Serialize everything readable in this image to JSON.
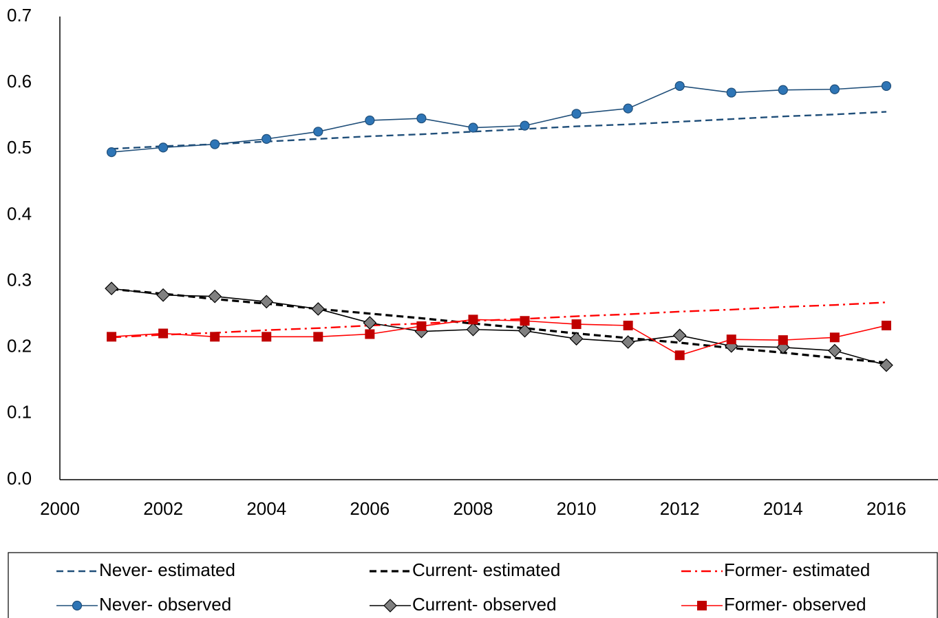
{
  "chart_data": {
    "type": "line",
    "x": [
      2001,
      2002,
      2003,
      2004,
      2005,
      2006,
      2007,
      2008,
      2009,
      2010,
      2011,
      2012,
      2013,
      2014,
      2015,
      2016
    ],
    "series": [
      {
        "name": "Never- estimated",
        "color": "#1f4e79",
        "dash": "dashed",
        "values": [
          0.5,
          0.504,
          0.507,
          0.511,
          0.515,
          0.519,
          0.522,
          0.526,
          0.53,
          0.534,
          0.537,
          0.541,
          0.545,
          0.549,
          0.552,
          0.556
        ]
      },
      {
        "name": "Current- estimated",
        "color": "#000000",
        "dash": "dashed",
        "values": [
          0.288,
          0.281,
          0.273,
          0.266,
          0.258,
          0.251,
          0.244,
          0.236,
          0.229,
          0.221,
          0.214,
          0.207,
          0.199,
          0.192,
          0.184,
          0.177
        ]
      },
      {
        "name": "Former- estimated",
        "color": "#ff0000",
        "dash": "dashdot",
        "values": [
          0.215,
          0.219,
          0.222,
          0.226,
          0.229,
          0.233,
          0.236,
          0.24,
          0.243,
          0.247,
          0.25,
          0.254,
          0.257,
          0.261,
          0.264,
          0.268
        ]
      },
      {
        "name": "Never- observed",
        "color": "#1f4e79",
        "marker": "circle",
        "marker_color": "#2e75b6",
        "values": [
          0.495,
          0.502,
          0.507,
          0.515,
          0.526,
          0.543,
          0.546,
          0.532,
          0.535,
          0.553,
          0.561,
          0.595,
          0.585,
          0.589,
          0.59,
          0.595
        ]
      },
      {
        "name": "Current- observed",
        "color": "#000000",
        "marker": "diamond",
        "marker_color": "#808080",
        "values": [
          0.289,
          0.279,
          0.277,
          0.269,
          0.258,
          0.237,
          0.224,
          0.227,
          0.225,
          0.213,
          0.208,
          0.218,
          0.202,
          0.2,
          0.195,
          0.173
        ]
      },
      {
        "name": "Former- observed",
        "color": "#ff0000",
        "marker": "square",
        "marker_color": "#c00000",
        "values": [
          0.216,
          0.221,
          0.216,
          0.216,
          0.216,
          0.22,
          0.232,
          0.242,
          0.24,
          0.235,
          0.233,
          0.188,
          0.212,
          0.211,
          0.215,
          0.233
        ]
      }
    ],
    "xlim": [
      2000,
      2017
    ],
    "xticks": [
      2000,
      2002,
      2004,
      2006,
      2008,
      2010,
      2012,
      2014,
      2016
    ],
    "ylim": [
      0,
      0.7
    ],
    "yticks": [
      {
        "value": 0,
        "label": "0.0"
      },
      0.1,
      0.2,
      0.3,
      0.4,
      0.5,
      0.6,
      0.7
    ],
    "grid": false,
    "legend": "bottom"
  }
}
